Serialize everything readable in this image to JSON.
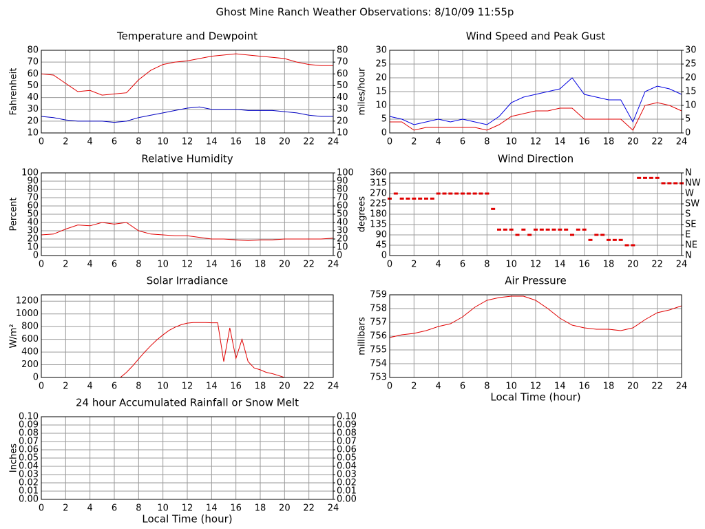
{
  "title": "Ghost Mine Ranch Weather Observations: 8/10/09 11:55p",
  "chart_data": [
    {
      "type": "line",
      "title": "Temperature and Dewpoint",
      "ylabel": "Fahrenheit",
      "x": [
        0,
        1,
        2,
        3,
        4,
        5,
        6,
        7,
        8,
        9,
        10,
        11,
        12,
        13,
        14,
        15,
        16,
        17,
        18,
        19,
        20,
        21,
        22,
        23,
        24
      ],
      "xlim": [
        0,
        24
      ],
      "xticks": [
        0,
        2,
        4,
        6,
        8,
        10,
        12,
        14,
        16,
        18,
        20,
        22,
        24
      ],
      "ylim": [
        10,
        80
      ],
      "yticks": [
        10,
        20,
        30,
        40,
        50,
        60,
        70,
        80
      ],
      "y2lim": [
        10,
        80
      ],
      "y2ticks": [
        10,
        20,
        30,
        40,
        50,
        60,
        70,
        80
      ],
      "grid": true,
      "series": [
        {
          "color": "#e00000",
          "values": [
            60,
            59,
            52,
            45,
            46,
            42,
            43,
            44,
            55,
            63,
            68,
            70,
            71,
            73,
            75,
            76,
            77,
            76,
            75,
            74,
            73,
            70,
            68,
            67,
            67
          ]
        },
        {
          "color": "#0000c0",
          "values": [
            24,
            23,
            21,
            20,
            20,
            20,
            19,
            20,
            23,
            25,
            27,
            29,
            31,
            32,
            30,
            30,
            30,
            29,
            29,
            29,
            28,
            27,
            25,
            24,
            24
          ]
        }
      ]
    },
    {
      "type": "line",
      "title": "Wind Speed and Peak Gust",
      "ylabel": "miles/hour",
      "x": [
        0,
        1,
        2,
        3,
        4,
        5,
        6,
        7,
        8,
        9,
        10,
        11,
        12,
        13,
        14,
        15,
        16,
        17,
        18,
        19,
        20,
        21,
        22,
        23,
        24
      ],
      "xlim": [
        0,
        24
      ],
      "xticks": [
        0,
        2,
        4,
        6,
        8,
        10,
        12,
        14,
        16,
        18,
        20,
        22,
        24
      ],
      "ylim": [
        0,
        30
      ],
      "yticks": [
        0,
        5,
        10,
        15,
        20,
        25,
        30
      ],
      "y2lim": [
        0,
        30
      ],
      "y2ticks": [
        0,
        5,
        10,
        15,
        20,
        25,
        30
      ],
      "grid": true,
      "series": [
        {
          "color": "#0000e0",
          "values": [
            6,
            5,
            3,
            4,
            5,
            4,
            5,
            4,
            3,
            6,
            11,
            13,
            14,
            15,
            16,
            20,
            14,
            13,
            12,
            12,
            4,
            15,
            17,
            16,
            14
          ]
        },
        {
          "color": "#e00000",
          "values": [
            4,
            4,
            1,
            2,
            2,
            2,
            2,
            2,
            1,
            3,
            6,
            7,
            8,
            8,
            9,
            9,
            5,
            5,
            5,
            5,
            1,
            10,
            11,
            10,
            8
          ]
        }
      ]
    },
    {
      "type": "line",
      "title": "Relative Humidity",
      "ylabel": "Percent",
      "x": [
        0,
        1,
        2,
        3,
        4,
        5,
        6,
        7,
        8,
        9,
        10,
        11,
        12,
        13,
        14,
        15,
        16,
        17,
        18,
        19,
        20,
        21,
        22,
        23,
        24
      ],
      "xlim": [
        0,
        24
      ],
      "xticks": [
        0,
        2,
        4,
        6,
        8,
        10,
        12,
        14,
        16,
        18,
        20,
        22,
        24
      ],
      "ylim": [
        0,
        100
      ],
      "yticks": [
        0,
        10,
        20,
        30,
        40,
        50,
        60,
        70,
        80,
        90,
        100
      ],
      "y2lim": [
        0,
        100
      ],
      "y2ticks": [
        0,
        10,
        20,
        30,
        40,
        50,
        60,
        70,
        80,
        90,
        100
      ],
      "grid": true,
      "series": [
        {
          "color": "#e00000",
          "values": [
            25,
            26,
            32,
            37,
            36,
            40,
            38,
            40,
            30,
            26,
            25,
            24,
            24,
            22,
            20,
            20,
            19,
            18,
            19,
            19,
            20,
            20,
            20,
            20,
            21
          ]
        }
      ]
    },
    {
      "type": "scatter",
      "title": "Wind Direction",
      "ylabel": "degrees",
      "x": [
        0,
        0.5,
        1,
        1.5,
        2,
        2.5,
        3,
        3.5,
        4,
        4.5,
        5,
        5.5,
        6,
        6.5,
        7,
        7.5,
        8,
        8.5,
        9,
        9.5,
        10,
        10.5,
        11,
        11.5,
        12,
        12.5,
        13,
        13.5,
        14,
        14.5,
        15,
        15.5,
        16,
        16.5,
        17,
        17.5,
        18,
        18.5,
        19,
        19.5,
        20,
        20.5,
        21,
        21.5,
        22,
        22.5,
        23,
        23.5,
        24
      ],
      "xlim": [
        0,
        24
      ],
      "xticks": [
        0,
        2,
        4,
        6,
        8,
        10,
        12,
        14,
        16,
        18,
        20,
        22,
        24
      ],
      "ylim": [
        0,
        360
      ],
      "yticks": [
        0,
        45,
        90,
        135,
        180,
        225,
        270,
        315,
        360
      ],
      "y2lim": [
        0,
        360
      ],
      "y2ticks": [
        {
          "value": 0,
          "label": "N"
        },
        {
          "value": 45,
          "label": "NE"
        },
        {
          "value": 90,
          "label": "E"
        },
        {
          "value": 135,
          "label": "SE"
        },
        {
          "value": 180,
          "label": "S"
        },
        {
          "value": 225,
          "label": "SW"
        },
        {
          "value": 270,
          "label": "W"
        },
        {
          "value": 315,
          "label": "NW"
        },
        {
          "value": 360,
          "label": "N"
        }
      ],
      "grid": true,
      "series": [
        {
          "color": "#e00000",
          "values": [
            248,
            270,
            248,
            248,
            248,
            248,
            248,
            248,
            270,
            270,
            270,
            270,
            270,
            270,
            270,
            270,
            270,
            203,
            113,
            113,
            113,
            90,
            113,
            90,
            113,
            113,
            113,
            113,
            113,
            113,
            90,
            113,
            113,
            68,
            90,
            90,
            68,
            68,
            68,
            45,
            45,
            338,
            338,
            338,
            338,
            315,
            315,
            315,
            315
          ]
        }
      ]
    },
    {
      "type": "line",
      "title": "Solar Irradiance",
      "ylabel": "W/m²",
      "x": [
        0,
        0.5,
        1,
        1.5,
        2,
        2.5,
        3,
        3.5,
        4,
        4.5,
        5,
        5.5,
        6,
        6.5,
        7,
        7.5,
        8,
        8.5,
        9,
        9.5,
        10,
        10.5,
        11,
        11.5,
        12,
        12.5,
        13,
        13.5,
        14,
        14.5,
        15,
        15.5,
        16,
        16.5,
        17,
        17.5,
        18,
        18.5,
        19,
        19.5,
        20,
        20.5,
        21,
        21.5,
        22,
        22.5,
        23,
        23.5,
        24
      ],
      "xlim": [
        0,
        24
      ],
      "xticks": [
        0,
        2,
        4,
        6,
        8,
        10,
        12,
        14,
        16,
        18,
        20,
        22,
        24
      ],
      "ylim": [
        0,
        1300
      ],
      "yticks": [
        0,
        200,
        400,
        600,
        800,
        1000,
        1200
      ],
      "grid": true,
      "series": [
        {
          "color": "#e00000",
          "values": [
            0,
            0,
            0,
            0,
            0,
            0,
            0,
            0,
            0,
            0,
            0,
            0,
            0,
            0,
            80,
            180,
            290,
            400,
            500,
            590,
            670,
            740,
            790,
            830,
            855,
            865,
            865,
            865,
            860,
            860,
            250,
            780,
            300,
            600,
            250,
            150,
            120,
            80,
            60,
            30,
            0,
            0,
            0,
            0,
            0,
            0,
            0,
            0,
            0
          ]
        }
      ]
    },
    {
      "type": "line",
      "title": "Air Pressure",
      "ylabel": "millibars",
      "xlabel": "Local Time (hour)",
      "x": [
        0,
        1,
        2,
        3,
        4,
        5,
        6,
        7,
        8,
        9,
        10,
        11,
        12,
        13,
        14,
        15,
        16,
        17,
        18,
        19,
        20,
        21,
        22,
        23,
        24
      ],
      "xlim": [
        0,
        24
      ],
      "xticks": [
        0,
        2,
        4,
        6,
        8,
        10,
        12,
        14,
        16,
        18,
        20,
        22,
        24
      ],
      "ylim": [
        753,
        759
      ],
      "yticks": [
        753,
        754,
        755,
        756,
        757,
        758,
        759
      ],
      "grid": true,
      "series": [
        {
          "color": "#e00000",
          "values": [
            755.9,
            756.1,
            756.2,
            756.4,
            756.7,
            756.9,
            757.4,
            758.1,
            758.6,
            758.8,
            758.9,
            758.9,
            758.6,
            758.0,
            757.3,
            756.8,
            756.6,
            756.5,
            756.5,
            756.4,
            756.6,
            757.2,
            757.7,
            757.9,
            758.2
          ]
        }
      ]
    },
    {
      "type": "line",
      "title": "24 hour Accumulated Rainfall or Snow Melt",
      "ylabel": "Inches",
      "xlabel": "Local Time (hour)",
      "x": [
        0,
        1,
        2,
        3,
        4,
        5,
        6,
        7,
        8,
        9,
        10,
        11,
        12,
        13,
        14,
        15,
        16,
        17,
        18,
        19,
        20,
        21,
        22,
        23,
        24
      ],
      "xlim": [
        0,
        24
      ],
      "xticks": [
        0,
        2,
        4,
        6,
        8,
        10,
        12,
        14,
        16,
        18,
        20,
        22,
        24
      ],
      "ylim": [
        0,
        0.1
      ],
      "yticks": [
        {
          "value": 0,
          "label": "0.00"
        },
        0.01,
        0.02,
        0.03,
        0.04,
        0.05,
        0.06,
        0.07,
        0.08,
        0.09,
        {
          "value": 0.1,
          "label": "0.10"
        }
      ],
      "y2lim": [
        0,
        0.1
      ],
      "y2ticks": [
        {
          "value": 0,
          "label": "0.00"
        },
        0.01,
        0.02,
        0.03,
        0.04,
        0.05,
        0.06,
        0.07,
        0.08,
        0.09,
        {
          "value": 0.1,
          "label": "0.10"
        }
      ],
      "grid": true,
      "series": [
        {
          "color": "#e00000",
          "values": [
            0,
            0,
            0,
            0,
            0,
            0,
            0,
            0,
            0,
            0,
            0,
            0,
            0,
            0,
            0,
            0,
            0,
            0,
            0,
            0,
            0,
            0,
            0,
            0,
            0
          ]
        }
      ]
    }
  ]
}
